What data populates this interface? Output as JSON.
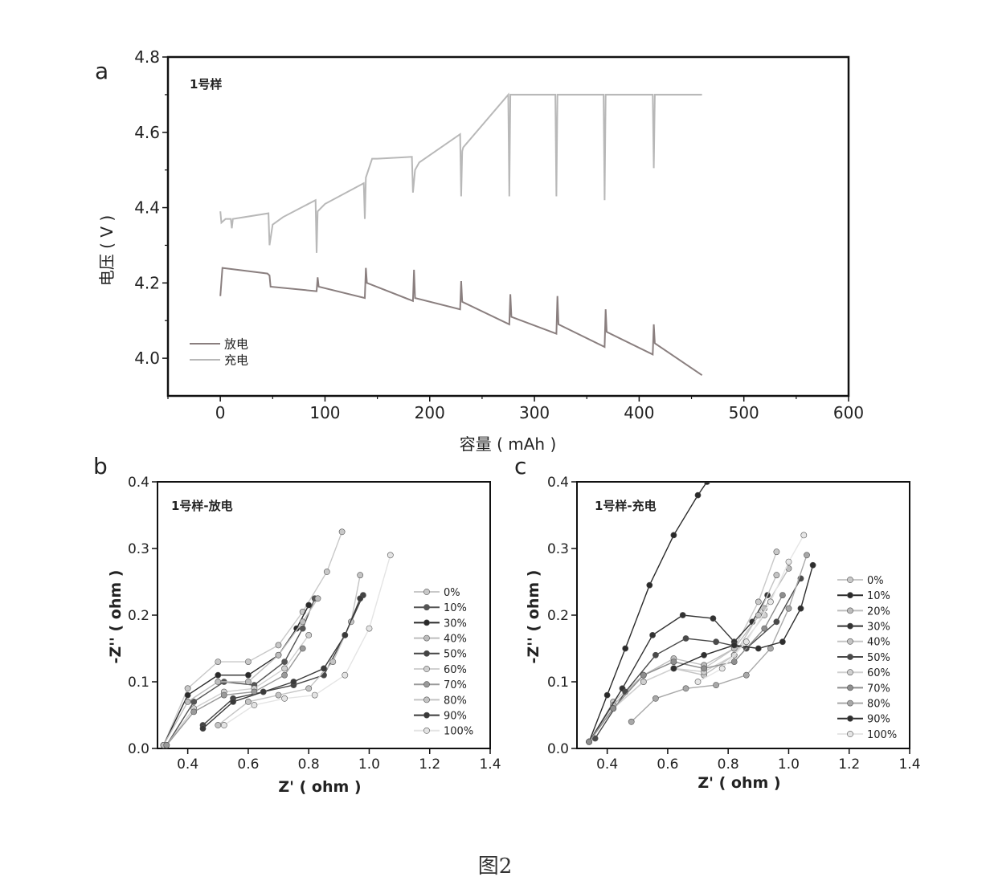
{
  "figure_caption": "图2",
  "chart_data": [
    {
      "type": "line",
      "panel_label": "a",
      "sample_label": "1号样",
      "xlabel": "容量 ( mAh )",
      "ylabel": "电压 ( V )",
      "xlim": [
        -50,
        600
      ],
      "ylim": [
        3.9,
        4.8
      ],
      "xticks": [
        0,
        100,
        200,
        300,
        400,
        500,
        600
      ],
      "yticks": [
        4.0,
        4.2,
        4.4,
        4.6,
        4.8
      ],
      "xtick_labels": [
        "0",
        "100",
        "200",
        "300",
        "400",
        "500",
        "600"
      ],
      "ytick_labels": [
        "4.0",
        "4.2",
        "4.4",
        "4.6",
        "4.8"
      ],
      "legend": [
        {
          "name": "放电",
          "color": "#8a7f7f"
        },
        {
          "name": "充电",
          "color": "#b8b8b8"
        }
      ],
      "series": [
        {
          "name": "放电",
          "color": "#8a7f7f",
          "x": [
            0,
            2,
            45,
            47,
            48,
            92,
            93,
            94,
            138,
            139,
            140,
            184,
            185,
            186,
            229,
            230,
            231,
            276,
            277,
            278,
            321,
            322,
            323,
            367,
            368,
            369,
            413,
            414,
            415,
            460
          ],
          "y": [
            4.165,
            4.24,
            4.225,
            4.22,
            4.19,
            4.178,
            4.215,
            4.19,
            4.16,
            4.24,
            4.2,
            4.152,
            4.235,
            4.16,
            4.13,
            4.205,
            4.15,
            4.09,
            4.17,
            4.11,
            4.065,
            4.165,
            4.09,
            4.03,
            4.13,
            4.07,
            4.01,
            4.09,
            4.04,
            3.955
          ]
        },
        {
          "name": "充电",
          "color": "#b8b8b8",
          "x": [
            0,
            1,
            5,
            10,
            11,
            12,
            46,
            47,
            50,
            60,
            91,
            92,
            93,
            100,
            137,
            138,
            139,
            145,
            150,
            183,
            184,
            186,
            190,
            229,
            230,
            231,
            232,
            275,
            276,
            277,
            278,
            320,
            321,
            322,
            366,
            367,
            368,
            413,
            414,
            415,
            460
          ],
          "y": [
            4.39,
            4.36,
            4.37,
            4.37,
            4.345,
            4.37,
            4.385,
            4.3,
            4.355,
            4.375,
            4.42,
            4.28,
            4.39,
            4.41,
            4.465,
            4.37,
            4.48,
            4.53,
            4.53,
            4.535,
            4.44,
            4.5,
            4.52,
            4.595,
            4.43,
            4.55,
            4.56,
            4.7,
            4.43,
            4.7,
            4.7,
            4.7,
            4.43,
            4.7,
            4.7,
            4.42,
            4.7,
            4.7,
            4.505,
            4.7,
            4.7
          ]
        }
      ]
    },
    {
      "type": "scatter",
      "panel_label": "b",
      "sample_label": "1号样-放电",
      "xlabel": "Z' ( ohm )",
      "ylabel": "-Z'' ( ohm )",
      "xlim": [
        0.3,
        1.4
      ],
      "ylim": [
        0.0,
        0.4
      ],
      "xticks": [
        0.4,
        0.6,
        0.8,
        1.0,
        1.2,
        1.4
      ],
      "yticks": [
        0.0,
        0.1,
        0.2,
        0.3,
        0.4
      ],
      "xtick_labels": [
        "0.4",
        "0.6",
        "0.8",
        "1.0",
        "1.2",
        "1.4"
      ],
      "ytick_labels": [
        "0.0",
        "0.1",
        "0.2",
        "0.3",
        "0.4"
      ],
      "series": [
        {
          "name": "0%",
          "color": "#c8c8c8",
          "x": [
            0.32,
            0.4,
            0.5,
            0.6,
            0.7,
            0.78,
            0.86,
            0.91
          ],
          "y": [
            0.005,
            0.09,
            0.13,
            0.13,
            0.155,
            0.205,
            0.265,
            0.325
          ]
        },
        {
          "name": "10%",
          "color": "#555555",
          "x": [
            0.33,
            0.42,
            0.52,
            0.62,
            0.72,
            0.78,
            0.82
          ],
          "y": [
            0.005,
            0.07,
            0.1,
            0.095,
            0.13,
            0.18,
            0.225
          ]
        },
        {
          "name": "30%",
          "color": "#2a2a2a",
          "x": [
            0.32,
            0.4,
            0.5,
            0.6,
            0.7,
            0.76,
            0.8
          ],
          "y": [
            0.005,
            0.08,
            0.11,
            0.11,
            0.14,
            0.18,
            0.215
          ]
        },
        {
          "name": "40%",
          "color": "#bdbdbd",
          "x": [
            0.32,
            0.4,
            0.5,
            0.6,
            0.7,
            0.78,
            0.83
          ],
          "y": [
            0.005,
            0.07,
            0.1,
            0.1,
            0.14,
            0.19,
            0.225
          ]
        },
        {
          "name": "50%",
          "color": "#444444",
          "x": [
            0.45,
            0.55,
            0.65,
            0.75,
            0.85,
            0.92,
            0.98
          ],
          "y": [
            0.035,
            0.075,
            0.085,
            0.095,
            0.11,
            0.17,
            0.23
          ]
        },
        {
          "name": "60%",
          "color": "#d0d0d0",
          "x": [
            0.33,
            0.42,
            0.52,
            0.62,
            0.72,
            0.8
          ],
          "y": [
            0.005,
            0.06,
            0.085,
            0.09,
            0.12,
            0.17
          ]
        },
        {
          "name": "70%",
          "color": "#9a9a9a",
          "x": [
            0.33,
            0.42,
            0.52,
            0.62,
            0.72,
            0.78
          ],
          "y": [
            0.005,
            0.055,
            0.08,
            0.085,
            0.11,
            0.15
          ]
        },
        {
          "name": "80%",
          "color": "#c4c4c4",
          "x": [
            0.5,
            0.6,
            0.7,
            0.8,
            0.88,
            0.94,
            0.97
          ],
          "y": [
            0.035,
            0.07,
            0.08,
            0.09,
            0.13,
            0.19,
            0.26
          ]
        },
        {
          "name": "90%",
          "color": "#3a3a3a",
          "x": [
            0.45,
            0.55,
            0.65,
            0.75,
            0.85,
            0.92,
            0.97
          ],
          "y": [
            0.03,
            0.07,
            0.085,
            0.1,
            0.12,
            0.17,
            0.225
          ]
        },
        {
          "name": "100%",
          "color": "#e4e4e4",
          "x": [
            0.52,
            0.62,
            0.72,
            0.82,
            0.92,
            1.0,
            1.07
          ],
          "y": [
            0.035,
            0.065,
            0.075,
            0.08,
            0.11,
            0.18,
            0.29
          ]
        }
      ]
    },
    {
      "type": "scatter",
      "panel_label": "c",
      "sample_label": "1号样-充电",
      "xlabel": "Z' ( ohm )",
      "ylabel": "-Z'' ( ohm )",
      "xlim": [
        0.3,
        1.4
      ],
      "ylim": [
        0.0,
        0.4
      ],
      "xticks": [
        0.4,
        0.6,
        0.8,
        1.0,
        1.2,
        1.4
      ],
      "yticks": [
        0.0,
        0.1,
        0.2,
        0.3,
        0.4
      ],
      "xtick_labels": [
        "0.4",
        "0.6",
        "0.8",
        "1.0",
        "1.2",
        "1.4"
      ],
      "ytick_labels": [
        "0.0",
        "0.1",
        "0.2",
        "0.3",
        "0.4"
      ],
      "series": [
        {
          "name": "0%",
          "color": "#c8c8c8",
          "x": [
            0.34,
            0.42,
            0.52,
            0.62,
            0.72,
            0.82,
            0.9,
            0.96
          ],
          "y": [
            0.01,
            0.07,
            0.11,
            0.13,
            0.12,
            0.15,
            0.22,
            0.295
          ]
        },
        {
          "name": "10%",
          "color": "#2a2a2a",
          "x": [
            0.34,
            0.4,
            0.46,
            0.54,
            0.62,
            0.7,
            0.73
          ],
          "y": [
            0.01,
            0.08,
            0.15,
            0.245,
            0.32,
            0.38,
            0.4
          ]
        },
        {
          "name": "20%",
          "color": "#bdbdbd",
          "x": [
            0.34,
            0.42,
            0.52,
            0.62,
            0.72,
            0.82,
            0.92,
            1.0
          ],
          "y": [
            0.01,
            0.065,
            0.11,
            0.135,
            0.125,
            0.15,
            0.21,
            0.27
          ]
        },
        {
          "name": "30%",
          "color": "#333333",
          "x": [
            0.34,
            0.45,
            0.55,
            0.65,
            0.75,
            0.82,
            0.88,
            0.93
          ],
          "y": [
            0.01,
            0.09,
            0.17,
            0.2,
            0.195,
            0.16,
            0.19,
            0.23
          ]
        },
        {
          "name": "40%",
          "color": "#c4c4c4",
          "x": [
            0.34,
            0.42,
            0.52,
            0.62,
            0.72,
            0.82,
            0.9,
            0.96
          ],
          "y": [
            0.01,
            0.06,
            0.1,
            0.12,
            0.11,
            0.14,
            0.2,
            0.26
          ]
        },
        {
          "name": "50%",
          "color": "#4a4a4a",
          "x": [
            0.36,
            0.46,
            0.56,
            0.66,
            0.76,
            0.86,
            0.96,
            1.04
          ],
          "y": [
            0.015,
            0.085,
            0.14,
            0.165,
            0.16,
            0.15,
            0.19,
            0.255
          ]
        },
        {
          "name": "60%",
          "color": "#d0d0d0",
          "x": [
            0.34,
            0.42,
            0.52,
            0.62,
            0.72,
            0.82,
            0.92
          ],
          "y": [
            0.01,
            0.06,
            0.1,
            0.12,
            0.115,
            0.14,
            0.2
          ]
        },
        {
          "name": "70%",
          "color": "#8e8e8e",
          "x": [
            0.34,
            0.42,
            0.52,
            0.62,
            0.72,
            0.82,
            0.92,
            0.98
          ],
          "y": [
            0.01,
            0.06,
            0.11,
            0.13,
            0.12,
            0.13,
            0.18,
            0.23
          ]
        },
        {
          "name": "80%",
          "color": "#a8a8a8",
          "x": [
            0.48,
            0.56,
            0.66,
            0.76,
            0.86,
            0.94,
            1.0,
            1.06
          ],
          "y": [
            0.04,
            0.075,
            0.09,
            0.095,
            0.11,
            0.15,
            0.21,
            0.29
          ]
        },
        {
          "name": "90%",
          "color": "#2e2e2e",
          "x": [
            0.62,
            0.72,
            0.82,
            0.9,
            0.98,
            1.04,
            1.08
          ],
          "y": [
            0.12,
            0.14,
            0.155,
            0.15,
            0.16,
            0.21,
            0.275
          ]
        },
        {
          "name": "100%",
          "color": "#e6e6e6",
          "x": [
            0.7,
            0.78,
            0.86,
            0.94,
            1.0,
            1.05
          ],
          "y": [
            0.1,
            0.12,
            0.16,
            0.22,
            0.28,
            0.32
          ]
        }
      ]
    }
  ]
}
